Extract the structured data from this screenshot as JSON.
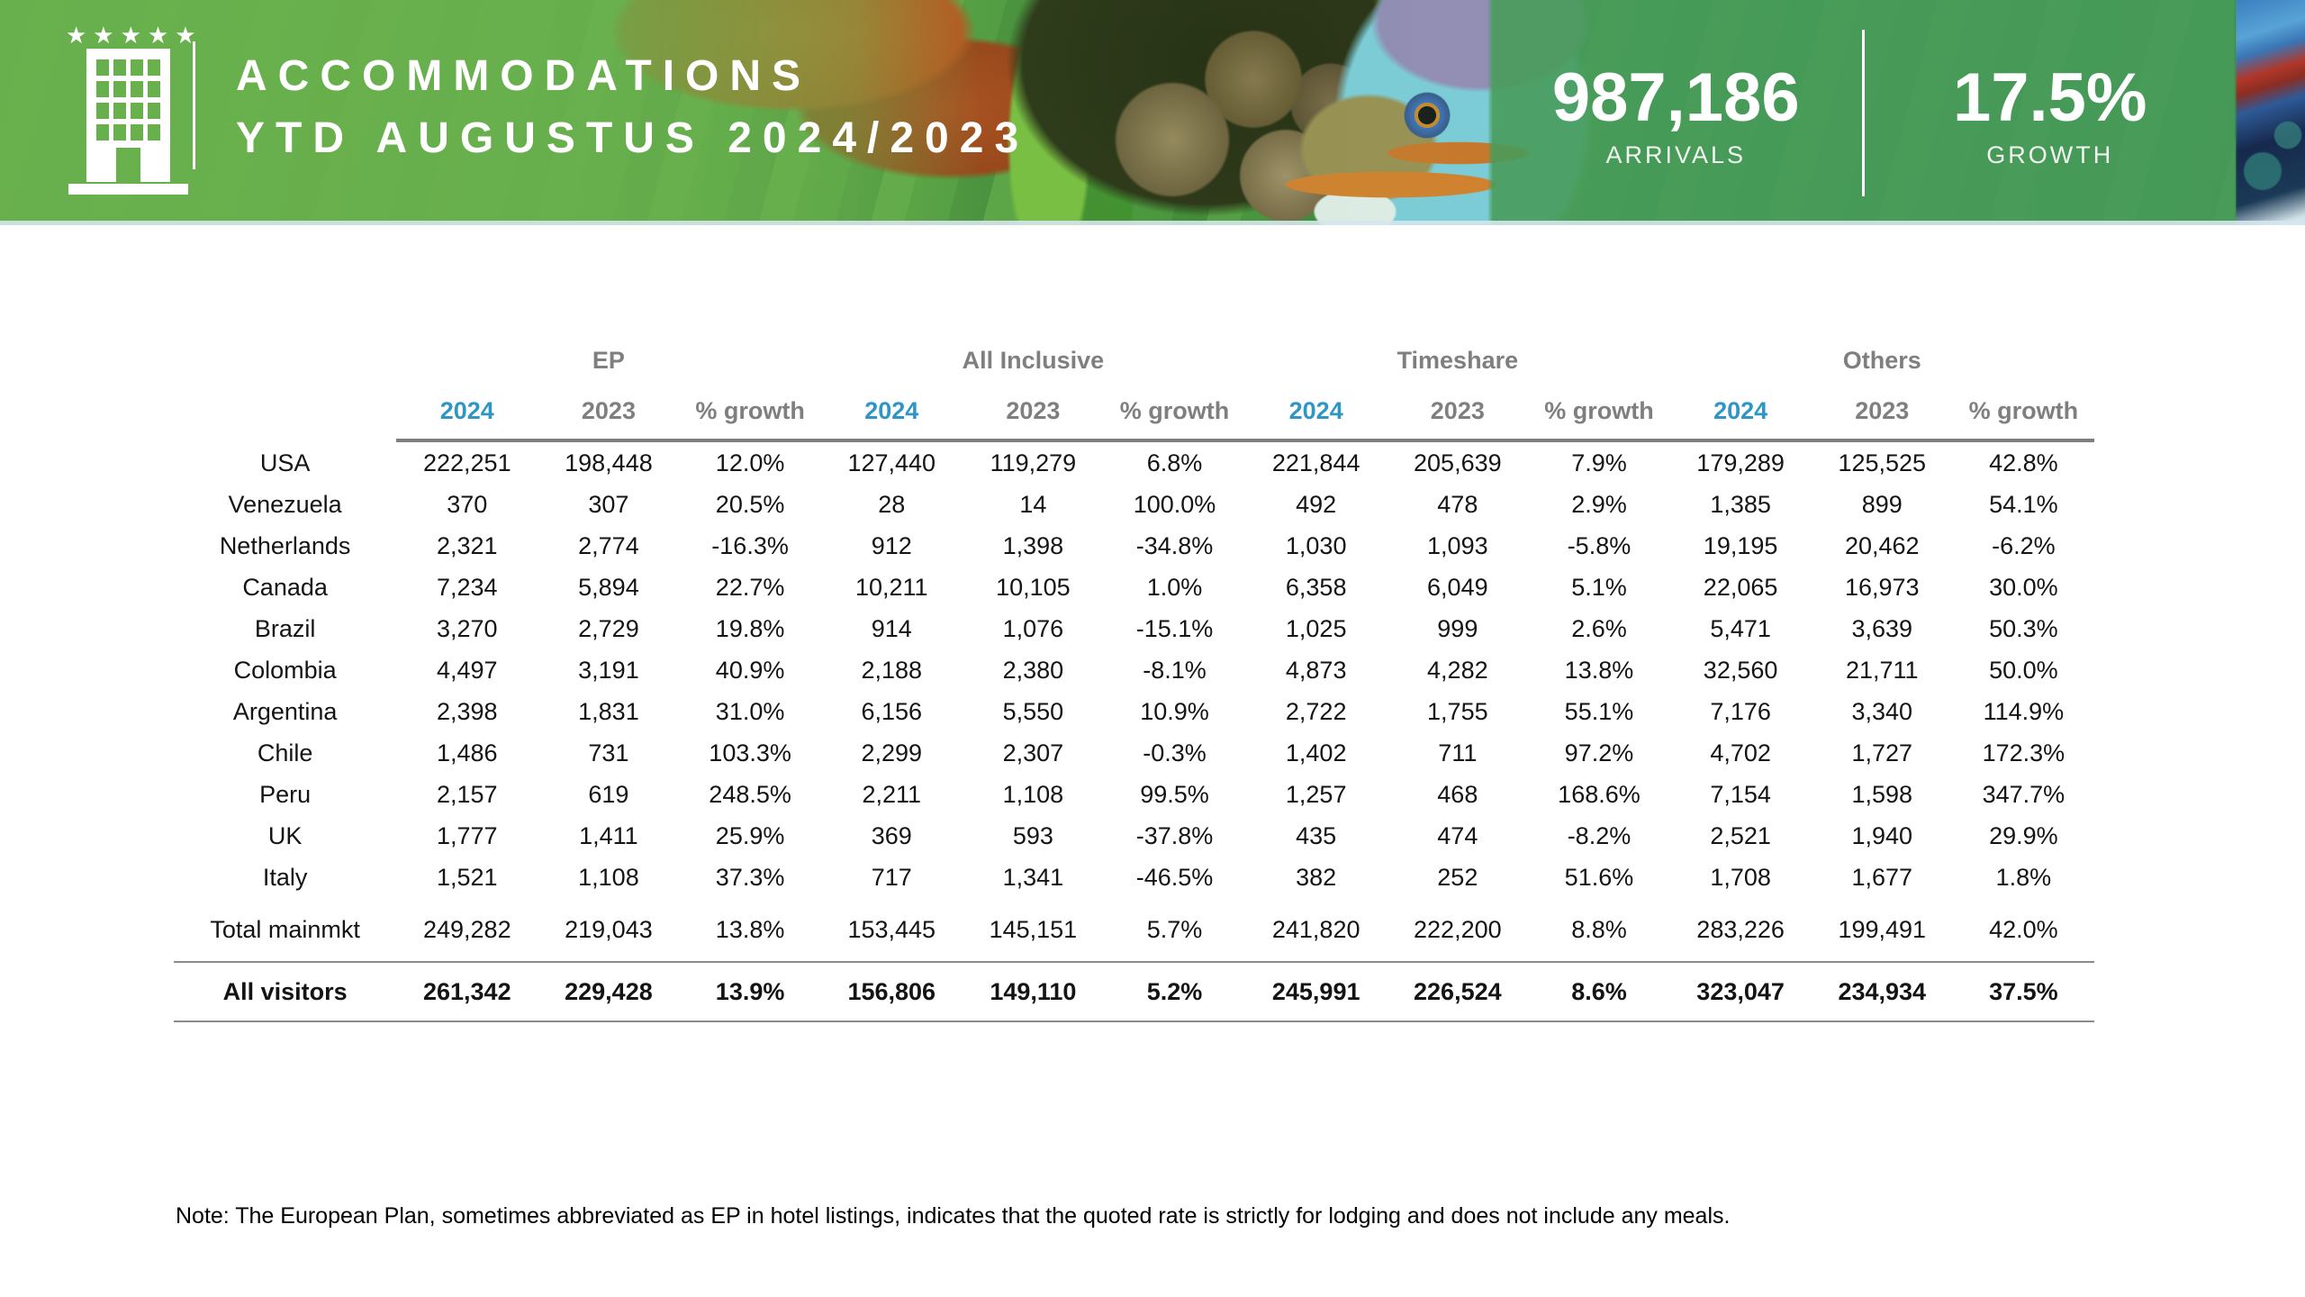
{
  "header": {
    "stars": "★★★★★",
    "title_line1": "ACCOMMODATIONS",
    "title_line2": "YTD AUGUSTUS 2024/2023",
    "stats": [
      {
        "value": "987,186",
        "label": "ARRIVALS"
      },
      {
        "value": "17.5%",
        "label": "GROWTH"
      }
    ]
  },
  "colors": {
    "accent_blue": "#2E96C5",
    "header_green": "#68B04D",
    "stats_panel_green": "#489C5A",
    "muted_gray": "#7F7F7F"
  },
  "table": {
    "groups": [
      "EP",
      "All Inclusive",
      "Timeshare",
      "Others"
    ],
    "sub_columns": [
      "2024",
      "2023",
      "% growth"
    ],
    "rows": [
      {
        "label": "USA",
        "values": [
          "222,251",
          "198,448",
          "12.0%",
          "127,440",
          "119,279",
          "6.8%",
          "221,844",
          "205,639",
          "7.9%",
          "179,289",
          "125,525",
          "42.8%"
        ]
      },
      {
        "label": "Venezuela",
        "values": [
          "370",
          "307",
          "20.5%",
          "28",
          "14",
          "100.0%",
          "492",
          "478",
          "2.9%",
          "1,385",
          "899",
          "54.1%"
        ]
      },
      {
        "label": "Netherlands",
        "values": [
          "2,321",
          "2,774",
          "-16.3%",
          "912",
          "1,398",
          "-34.8%",
          "1,030",
          "1,093",
          "-5.8%",
          "19,195",
          "20,462",
          "-6.2%"
        ]
      },
      {
        "label": "Canada",
        "values": [
          "7,234",
          "5,894",
          "22.7%",
          "10,211",
          "10,105",
          "1.0%",
          "6,358",
          "6,049",
          "5.1%",
          "22,065",
          "16,973",
          "30.0%"
        ]
      },
      {
        "label": "Brazil",
        "values": [
          "3,270",
          "2,729",
          "19.8%",
          "914",
          "1,076",
          "-15.1%",
          "1,025",
          "999",
          "2.6%",
          "5,471",
          "3,639",
          "50.3%"
        ]
      },
      {
        "label": "Colombia",
        "values": [
          "4,497",
          "3,191",
          "40.9%",
          "2,188",
          "2,380",
          "-8.1%",
          "4,873",
          "4,282",
          "13.8%",
          "32,560",
          "21,711",
          "50.0%"
        ]
      },
      {
        "label": "Argentina",
        "values": [
          "2,398",
          "1,831",
          "31.0%",
          "6,156",
          "5,550",
          "10.9%",
          "2,722",
          "1,755",
          "55.1%",
          "7,176",
          "3,340",
          "114.9%"
        ]
      },
      {
        "label": "Chile",
        "values": [
          "1,486",
          "731",
          "103.3%",
          "2,299",
          "2,307",
          "-0.3%",
          "1,402",
          "711",
          "97.2%",
          "4,702",
          "1,727",
          "172.3%"
        ]
      },
      {
        "label": "Peru",
        "values": [
          "2,157",
          "619",
          "248.5%",
          "2,211",
          "1,108",
          "99.5%",
          "1,257",
          "468",
          "168.6%",
          "7,154",
          "1,598",
          "347.7%"
        ]
      },
      {
        "label": "UK",
        "values": [
          "1,777",
          "1,411",
          "25.9%",
          "369",
          "593",
          "-37.8%",
          "435",
          "474",
          "-8.2%",
          "2,521",
          "1,940",
          "29.9%"
        ]
      },
      {
        "label": "Italy",
        "values": [
          "1,521",
          "1,108",
          "37.3%",
          "717",
          "1,341",
          "-46.5%",
          "382",
          "252",
          "51.6%",
          "1,708",
          "1,677",
          "1.8%"
        ]
      }
    ],
    "total_row": {
      "label": "Total mainmkt",
      "values": [
        "249,282",
        "219,043",
        "13.8%",
        "153,445",
        "145,151",
        "5.7%",
        "241,820",
        "222,200",
        "8.8%",
        "283,226",
        "199,491",
        "42.0%"
      ]
    },
    "all_visitors_row": {
      "label": "All visitors",
      "values": [
        "261,342",
        "229,428",
        "13.9%",
        "156,806",
        "149,110",
        "5.2%",
        "245,991",
        "226,524",
        "8.6%",
        "323,047",
        "234,934",
        "37.5%"
      ]
    }
  },
  "note": "Note: The European Plan, sometimes abbreviated as EP in hotel listings, indicates that the quoted rate is strictly for lodging and does not include any meals."
}
